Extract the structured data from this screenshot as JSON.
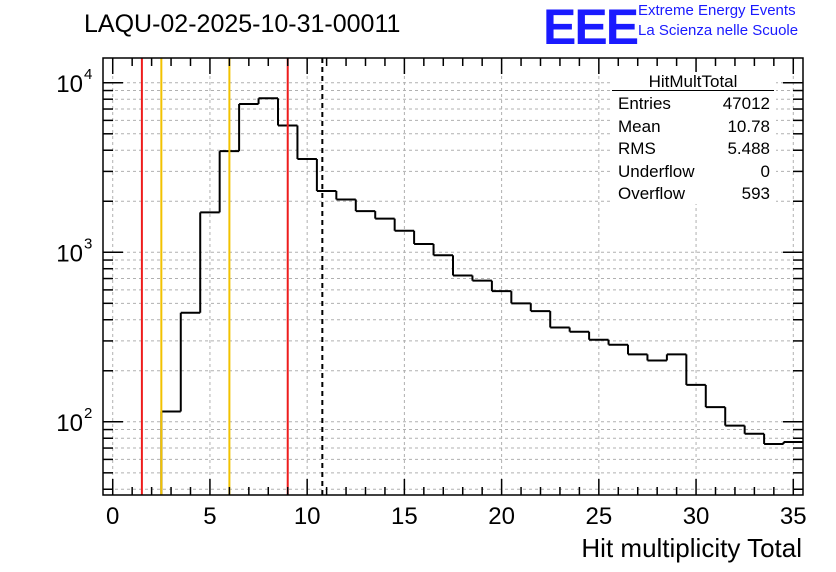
{
  "title": "LAQU-02-2025-10-31-00011",
  "logo": {
    "text": "EEE",
    "line1": "Extreme Energy Events",
    "line2": "La Scienza nelle Scuole",
    "color": "#1a1aff"
  },
  "stats": {
    "title": "HitMultTotal",
    "rows": [
      {
        "key": "Entries",
        "value": "47012"
      },
      {
        "key": "Mean",
        "value": "10.78"
      },
      {
        "key": "RMS",
        "value": "5.488"
      },
      {
        "key": "Underflow",
        "value": "0"
      },
      {
        "key": "Overflow",
        "value": "593"
      }
    ]
  },
  "chart_data": {
    "type": "histogram",
    "title": "LAQU-02-2025-10-31-00011",
    "xlabel": "Hit multiplicity Total",
    "ylabel": "",
    "xlim": [
      -0.5,
      35.5
    ],
    "ylim": [
      37,
      14000
    ],
    "yscale": "log",
    "grid": true,
    "bin_width": 1,
    "x_ticks": [
      0,
      5,
      10,
      15,
      20,
      25,
      30,
      35
    ],
    "x_tick_labels": [
      "0",
      "5",
      "10",
      "15",
      "20",
      "25",
      "30",
      "35"
    ],
    "y_ticks": [
      100,
      1000,
      10000
    ],
    "y_tick_labels": [
      {
        "base": "10",
        "exp": "2"
      },
      {
        "base": "10",
        "exp": "3"
      },
      {
        "base": "10",
        "exp": "4"
      }
    ],
    "bins": [
      {
        "x": 0,
        "value": 0
      },
      {
        "x": 1,
        "value": 0
      },
      {
        "x": 2,
        "value": 0
      },
      {
        "x": 3,
        "value": 115
      },
      {
        "x": 4,
        "value": 440
      },
      {
        "x": 5,
        "value": 1720
      },
      {
        "x": 6,
        "value": 3950
      },
      {
        "x": 7,
        "value": 7500
      },
      {
        "x": 8,
        "value": 8100
      },
      {
        "x": 9,
        "value": 5600
      },
      {
        "x": 10,
        "value": 3550
      },
      {
        "x": 11,
        "value": 2300
      },
      {
        "x": 12,
        "value": 2050
      },
      {
        "x": 13,
        "value": 1750
      },
      {
        "x": 14,
        "value": 1580
      },
      {
        "x": 15,
        "value": 1340
      },
      {
        "x": 16,
        "value": 1120
      },
      {
        "x": 17,
        "value": 960
      },
      {
        "x": 18,
        "value": 730
      },
      {
        "x": 19,
        "value": 680
      },
      {
        "x": 20,
        "value": 590
      },
      {
        "x": 21,
        "value": 500
      },
      {
        "x": 22,
        "value": 450
      },
      {
        "x": 23,
        "value": 360
      },
      {
        "x": 24,
        "value": 340
      },
      {
        "x": 25,
        "value": 305
      },
      {
        "x": 26,
        "value": 285
      },
      {
        "x": 27,
        "value": 250
      },
      {
        "x": 28,
        "value": 230
      },
      {
        "x": 29,
        "value": 250
      },
      {
        "x": 30,
        "value": 165
      },
      {
        "x": 31,
        "value": 122
      },
      {
        "x": 32,
        "value": 95
      },
      {
        "x": 33,
        "value": 85
      },
      {
        "x": 34,
        "value": 74
      },
      {
        "x": 35,
        "value": 76
      }
    ],
    "markers": [
      {
        "name": "red-line-left",
        "x": 1.5,
        "color": "#ee1c1c",
        "style": "solid"
      },
      {
        "name": "yellow-line-left",
        "x": 2.5,
        "color": "#f2c200",
        "style": "solid"
      },
      {
        "name": "yellow-line-right",
        "x": 6.0,
        "color": "#f2c200",
        "style": "solid"
      },
      {
        "name": "red-line-right",
        "x": 9.0,
        "color": "#ee1c1c",
        "style": "solid"
      },
      {
        "name": "mean-line",
        "x": 10.78,
        "color": "#000000",
        "style": "dashed"
      }
    ]
  }
}
